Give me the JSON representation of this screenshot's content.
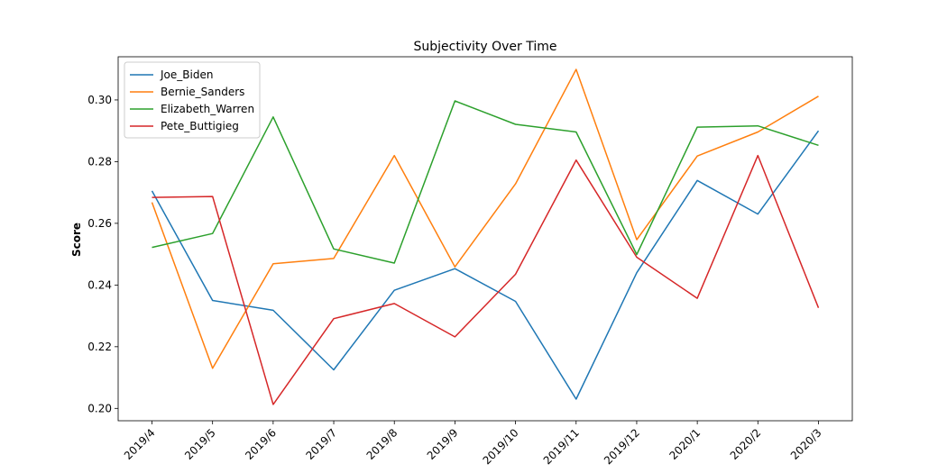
{
  "chart_data": {
    "type": "line",
    "title": "Subjectivity Over Time",
    "xlabel": "",
    "ylabel": "Score",
    "categories": [
      "2019/4",
      "2019/5",
      "2019/6",
      "2019/7",
      "2019/8",
      "2019/9",
      "2019/10",
      "2019/11",
      "2019/12",
      "2020/1",
      "2020/2",
      "2020/3"
    ],
    "ylim": [
      0.196,
      0.314
    ],
    "yticks": [
      0.2,
      0.22,
      0.24,
      0.26,
      0.28,
      0.3
    ],
    "ytick_labels": [
      "0.20",
      "0.22",
      "0.24",
      "0.26",
      "0.28",
      "0.30"
    ],
    "grid": false,
    "legend_position": "top-left",
    "series": [
      {
        "name": "Joe_Biden",
        "color": "#1f77b4",
        "values": [
          0.2705,
          0.235,
          0.2318,
          0.2125,
          0.2383,
          0.2453,
          0.2347,
          0.203,
          0.244,
          0.2739,
          0.263,
          0.29
        ]
      },
      {
        "name": "Bernie_Sanders",
        "color": "#ff7f0e",
        "values": [
          0.2668,
          0.213,
          0.2469,
          0.2486,
          0.282,
          0.2459,
          0.2728,
          0.3099,
          0.2547,
          0.2818,
          0.2896,
          0.3012
        ]
      },
      {
        "name": "Elizabeth_Warren",
        "color": "#2ca02c",
        "values": [
          0.2522,
          0.2567,
          0.2945,
          0.2517,
          0.2471,
          0.2997,
          0.2921,
          0.2896,
          0.2499,
          0.2912,
          0.2916,
          0.2853
        ]
      },
      {
        "name": "Pete_Buttigieg",
        "color": "#d62728",
        "values": [
          0.2684,
          0.2687,
          0.2013,
          0.2291,
          0.234,
          0.2232,
          0.2435,
          0.2805,
          0.249,
          0.2357,
          0.282,
          0.2326
        ]
      }
    ]
  }
}
